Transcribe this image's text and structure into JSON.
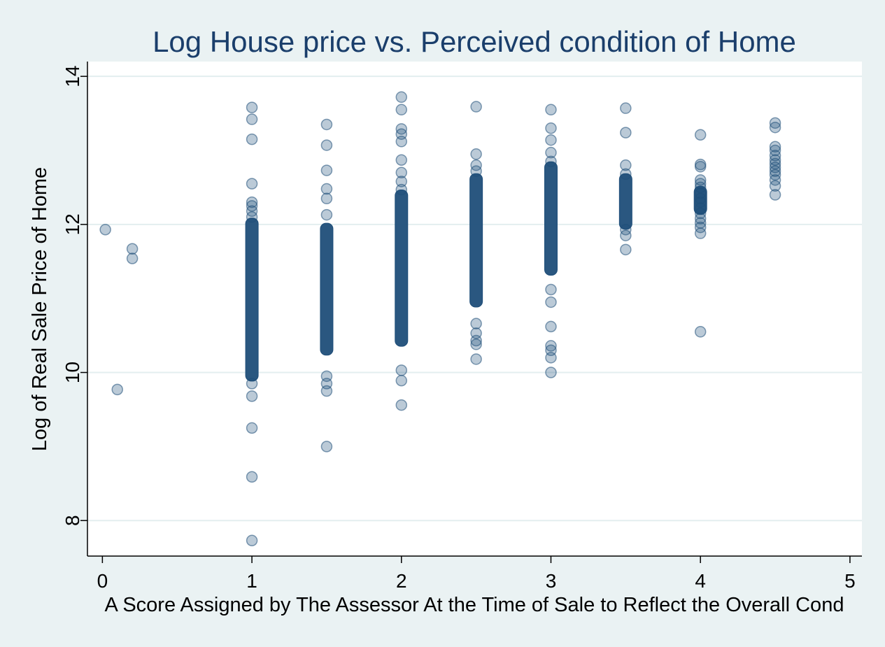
{
  "chart_data": {
    "type": "scatter",
    "title": "Log House price vs. Perceived condition of Home",
    "xlabel": "A Score Assigned by The Assessor At the Time of Sale to Reflect the Overall Cond",
    "ylabel": "Log of Real Sale Price of Home",
    "xlim": [
      -0.1,
      5.08
    ],
    "ylim": [
      7.52,
      14.2
    ],
    "xticks": [
      0,
      1,
      2,
      3,
      4,
      5
    ],
    "yticks": [
      8,
      10,
      12,
      14
    ],
    "grid": "horizontal",
    "marker_color": "#1f4e79",
    "points": [
      {
        "x": 0.02,
        "y": 11.93
      },
      {
        "x": 0.1,
        "y": 9.77
      },
      {
        "x": 0.2,
        "y": 11.67
      },
      {
        "x": 0.2,
        "y": 11.54
      },
      {
        "x": 1,
        "y": 13.58
      },
      {
        "x": 1,
        "y": 13.42
      },
      {
        "x": 1,
        "y": 13.15
      },
      {
        "x": 1,
        "y": 12.55
      },
      {
        "x": 1,
        "y": 12.3
      },
      {
        "x": 1,
        "y": 12.25
      },
      {
        "x": 1,
        "y": 12.18
      },
      {
        "x": 1,
        "y": 12.1
      },
      {
        "x": 1,
        "y": 9.85
      },
      {
        "x": 1,
        "y": 9.68
      },
      {
        "x": 1,
        "y": 9.25
      },
      {
        "x": 1,
        "y": 8.59
      },
      {
        "x": 1,
        "y": 7.73
      },
      {
        "x": 1.5,
        "y": 13.35
      },
      {
        "x": 1.5,
        "y": 13.07
      },
      {
        "x": 1.5,
        "y": 12.73
      },
      {
        "x": 1.5,
        "y": 12.48
      },
      {
        "x": 1.5,
        "y": 12.35
      },
      {
        "x": 1.5,
        "y": 12.13
      },
      {
        "x": 1.5,
        "y": 9.95
      },
      {
        "x": 1.5,
        "y": 9.85
      },
      {
        "x": 1.5,
        "y": 9.75
      },
      {
        "x": 1.5,
        "y": 9.0
      },
      {
        "x": 2,
        "y": 13.72
      },
      {
        "x": 2,
        "y": 13.55
      },
      {
        "x": 2,
        "y": 13.29
      },
      {
        "x": 2,
        "y": 13.22
      },
      {
        "x": 2,
        "y": 13.12
      },
      {
        "x": 2,
        "y": 12.87
      },
      {
        "x": 2,
        "y": 12.7
      },
      {
        "x": 2,
        "y": 12.58
      },
      {
        "x": 2,
        "y": 12.47
      },
      {
        "x": 2,
        "y": 10.03
      },
      {
        "x": 2,
        "y": 9.89
      },
      {
        "x": 2,
        "y": 9.56
      },
      {
        "x": 2.5,
        "y": 13.59
      },
      {
        "x": 2.5,
        "y": 12.95
      },
      {
        "x": 2.5,
        "y": 12.8
      },
      {
        "x": 2.5,
        "y": 12.72
      },
      {
        "x": 2.5,
        "y": 10.66
      },
      {
        "x": 2.5,
        "y": 10.53
      },
      {
        "x": 2.5,
        "y": 10.43
      },
      {
        "x": 2.5,
        "y": 10.38
      },
      {
        "x": 2.5,
        "y": 10.18
      },
      {
        "x": 3,
        "y": 13.55
      },
      {
        "x": 3,
        "y": 13.3
      },
      {
        "x": 3,
        "y": 13.14
      },
      {
        "x": 3,
        "y": 12.97
      },
      {
        "x": 3,
        "y": 12.85
      },
      {
        "x": 3,
        "y": 11.12
      },
      {
        "x": 3,
        "y": 10.95
      },
      {
        "x": 3,
        "y": 10.62
      },
      {
        "x": 3,
        "y": 10.36
      },
      {
        "x": 3,
        "y": 10.3
      },
      {
        "x": 3,
        "y": 10.2
      },
      {
        "x": 3,
        "y": 10.0
      },
      {
        "x": 3.5,
        "y": 13.57
      },
      {
        "x": 3.5,
        "y": 13.24
      },
      {
        "x": 3.5,
        "y": 12.8
      },
      {
        "x": 3.5,
        "y": 12.68
      },
      {
        "x": 3.5,
        "y": 11.93
      },
      {
        "x": 3.5,
        "y": 11.85
      },
      {
        "x": 3.5,
        "y": 11.66
      },
      {
        "x": 4,
        "y": 13.21
      },
      {
        "x": 4,
        "y": 12.81
      },
      {
        "x": 4,
        "y": 12.78
      },
      {
        "x": 4,
        "y": 12.6
      },
      {
        "x": 4,
        "y": 12.55
      },
      {
        "x": 4,
        "y": 12.5
      },
      {
        "x": 4,
        "y": 12.42
      },
      {
        "x": 4,
        "y": 12.35
      },
      {
        "x": 4,
        "y": 12.3
      },
      {
        "x": 4,
        "y": 12.22
      },
      {
        "x": 4,
        "y": 12.15
      },
      {
        "x": 4,
        "y": 12.08
      },
      {
        "x": 4,
        "y": 12.02
      },
      {
        "x": 4,
        "y": 11.96
      },
      {
        "x": 4,
        "y": 11.88
      },
      {
        "x": 4,
        "y": 10.55
      },
      {
        "x": 4.5,
        "y": 13.37
      },
      {
        "x": 4.5,
        "y": 13.31
      },
      {
        "x": 4.5,
        "y": 13.05
      },
      {
        "x": 4.5,
        "y": 13.0
      },
      {
        "x": 4.5,
        "y": 12.93
      },
      {
        "x": 4.5,
        "y": 12.87
      },
      {
        "x": 4.5,
        "y": 12.82
      },
      {
        "x": 4.5,
        "y": 12.77
      },
      {
        "x": 4.5,
        "y": 12.72
      },
      {
        "x": 4.5,
        "y": 12.67
      },
      {
        "x": 4.5,
        "y": 12.6
      },
      {
        "x": 4.5,
        "y": 12.52
      },
      {
        "x": 4.5,
        "y": 12.4
      }
    ],
    "dense_bands": [
      {
        "x": 1,
        "y_range": [
          9.95,
          12.02
        ]
      },
      {
        "x": 1.5,
        "y_range": [
          10.3,
          11.95
        ]
      },
      {
        "x": 2,
        "y_range": [
          10.42,
          12.4
        ]
      },
      {
        "x": 2.5,
        "y_range": [
          10.95,
          12.62
        ]
      },
      {
        "x": 3,
        "y_range": [
          11.38,
          12.78
        ]
      },
      {
        "x": 3.5,
        "y_range": [
          12.0,
          12.62
        ]
      },
      {
        "x": 4,
        "y_range": [
          12.2,
          12.45
        ]
      }
    ]
  }
}
